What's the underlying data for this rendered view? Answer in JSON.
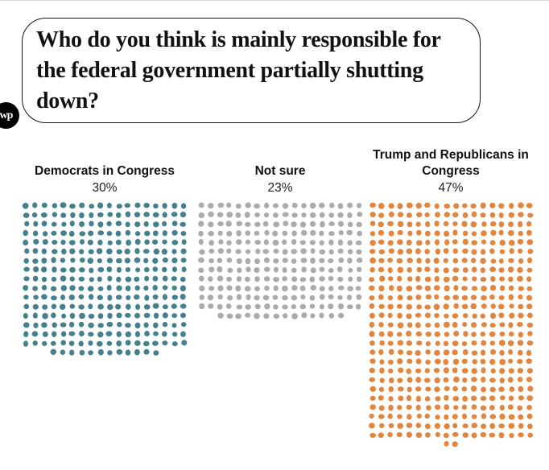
{
  "branding": {
    "logo_text": "wp",
    "logo_bg": "#000000",
    "logo_color": "#ffffff"
  },
  "question_bubble": {
    "text": "Who do you think is mainly responsible for the federal government partially shutting down?"
  },
  "chart_data": {
    "type": "waffle-dot",
    "title": "Who do you think is mainly responsible for the federal government partially shutting down?",
    "unit": "each dot = 0.1 percentage point",
    "dots_per_percent": 10,
    "dots_per_row": 18,
    "categories": [
      "Democrats in Congress",
      "Not sure",
      "Trump and Republicans in Congress"
    ],
    "values": [
      30,
      23,
      47
    ],
    "series": [
      {
        "label": "Democrats in Congress",
        "percent": 30,
        "percent_label": "30%",
        "color": "#45808f"
      },
      {
        "label": "Not sure",
        "percent": 23,
        "percent_label": "23%",
        "color": "#ababab"
      },
      {
        "label": "Trump and Republicans in Congress",
        "percent": 47,
        "percent_label": "47%",
        "color": "#e2853e"
      }
    ]
  }
}
